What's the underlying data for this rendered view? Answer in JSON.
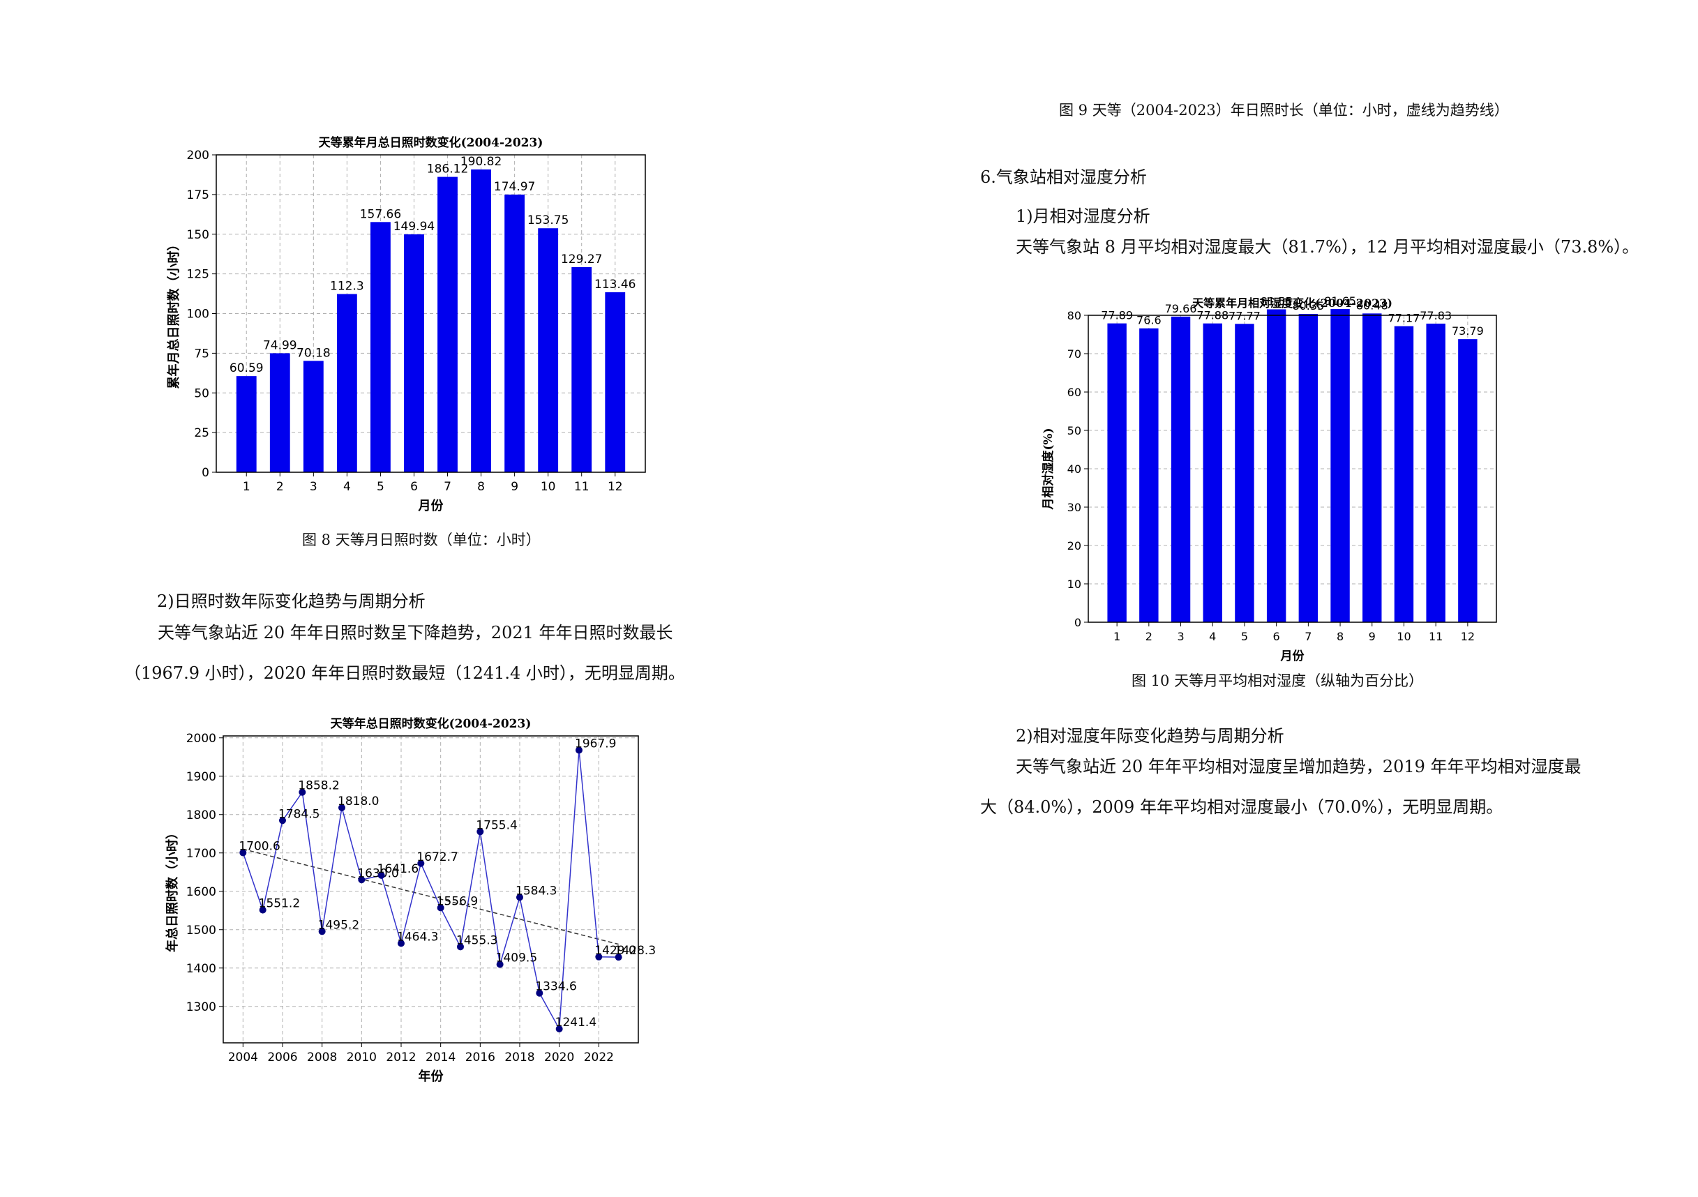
{
  "captions": {
    "fig8": "图 8 天等月日照时数（单位：小时）",
    "fig9": "图 9 天等（2004-2023）年日照时长（单位：小时，虚线为趋势线）",
    "fig10": "图 10 天等月平均相对湿度（纵轴为百分比）"
  },
  "left": {
    "section2_heading": "2)日照时数年际变化趋势与周期分析",
    "section2_para": "天等气象站近 20 年年日照时数呈下降趋势，2021 年年日照时数最长（1967.9 小时），2020 年年日照时数最短（1241.4 小时），无明显周期。"
  },
  "right": {
    "section6_heading": "6.气象站相对湿度分析",
    "sub1_heading": "1)月相对湿度分析",
    "sub1_para": "天等气象站 8 月平均相对湿度最大（81.7%），12 月平均相对湿度最小（73.8%）。",
    "sub2_heading": "2)相对湿度年际变化趋势与周期分析",
    "sub2_para": "天等气象站近 20 年年平均相对湿度呈增加趋势，2019 年年平均相对湿度最大（84.0%），2009 年年平均相对湿度最小（70.0%），无明显周期。"
  },
  "colors": {
    "bar": "#0000ee",
    "line": "#3333cc",
    "point": "#000080",
    "grid": "#b0b0b0",
    "trend": "#333333"
  },
  "chart_data": [
    {
      "id": "monthly_sunshine",
      "type": "bar",
      "title": "天等累年月总日照时数变化(2004-2023)",
      "xlabel": "月份",
      "ylabel": "累年月总日照时数（小时）",
      "categories": [
        "1",
        "2",
        "3",
        "4",
        "5",
        "6",
        "7",
        "8",
        "9",
        "10",
        "11",
        "12"
      ],
      "values": [
        60.59,
        74.99,
        70.18,
        112.3,
        157.66,
        149.94,
        186.12,
        190.82,
        174.97,
        153.75,
        129.27,
        113.46
      ],
      "data_labels": [
        "60.59",
        "74.99",
        "70.18",
        "112.3",
        "157.66",
        "149.94",
        "186.12",
        "190.82",
        "174.97",
        "153.75",
        "129.27",
        "113.46"
      ],
      "ylim": [
        0,
        200
      ],
      "yticks": [
        0,
        25,
        50,
        75,
        100,
        125,
        150,
        175,
        200
      ],
      "grid": true
    },
    {
      "id": "annual_sunshine",
      "type": "line",
      "title": "天等年总日照时数变化(2004-2023)",
      "xlabel": "年份",
      "ylabel": "年总日照时数（小时）",
      "x": [
        2004,
        2005,
        2006,
        2007,
        2008,
        2009,
        2010,
        2011,
        2012,
        2013,
        2014,
        2015,
        2016,
        2017,
        2018,
        2019,
        2020,
        2021,
        2022,
        2023
      ],
      "values": [
        1700.6,
        1551.2,
        1784.5,
        1858.2,
        1495.2,
        1818.0,
        1630.0,
        1641.6,
        1464.3,
        1672.7,
        1556.9,
        1455.3,
        1755.4,
        1409.5,
        1584.3,
        1334.6,
        1241.4,
        1967.9,
        1429.0,
        1428.3
      ],
      "data_labels": [
        "1700.6",
        "1551.2",
        "1784.5",
        "1858.2",
        "1495.2",
        "1818.0",
        "1630.0",
        "1641.6",
        "1464.3",
        "1672.7",
        "1556.9",
        "1455.3",
        "1755.4",
        "1409.5",
        "1584.3",
        "1334.6",
        "1241.4",
        "1967.9",
        "1429.0",
        "1428.3"
      ],
      "trend": [
        1710,
        1462
      ],
      "xticks": [
        2004,
        2006,
        2008,
        2010,
        2012,
        2014,
        2016,
        2018,
        2020,
        2022
      ],
      "xlim": [
        2003,
        2024
      ],
      "ylim": [
        1205,
        2005
      ],
      "yticks": [
        1300,
        1400,
        1500,
        1600,
        1700,
        1800,
        1900,
        2000
      ],
      "grid": true
    },
    {
      "id": "monthly_humidity",
      "type": "bar",
      "title": "天等累年月相对湿度变化(2004-2023)",
      "xlabel": "月份",
      "ylabel": "月相对湿度(%)",
      "categories": [
        "1",
        "2",
        "3",
        "4",
        "5",
        "6",
        "7",
        "8",
        "9",
        "10",
        "11",
        "12"
      ],
      "values": [
        77.89,
        76.6,
        79.66,
        77.88,
        77.77,
        81.55,
        80.35,
        81.65,
        80.48,
        77.17,
        77.83,
        73.79
      ],
      "data_labels": [
        "77.89",
        "76.6",
        "79.66",
        "77.88",
        "77.77",
        "81.55",
        "80.35",
        "81.65",
        "80.48",
        "77.17",
        "77.83",
        "73.79"
      ],
      "ylim": [
        0,
        80
      ],
      "yticks": [
        0,
        10,
        20,
        30,
        40,
        50,
        60,
        70,
        80
      ],
      "grid": true
    }
  ]
}
